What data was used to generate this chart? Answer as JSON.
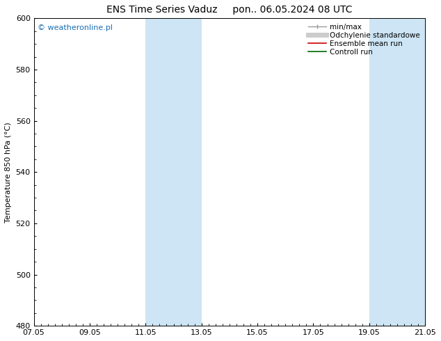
{
  "title": "ENS Time Series Vaduz     pon.. 06.05.2024 08 UTC",
  "ylabel": "Temperature 850 hPa (°C)",
  "ylim": [
    480,
    600
  ],
  "yticks": [
    480,
    500,
    520,
    540,
    560,
    580,
    600
  ],
  "xlim": [
    0,
    14
  ],
  "xtick_labels": [
    "07.05",
    "09.05",
    "11.05",
    "13.05",
    "15.05",
    "17.05",
    "19.05",
    "21.05"
  ],
  "xtick_positions": [
    0,
    2,
    4,
    6,
    8,
    10,
    12,
    14
  ],
  "shaded_bands": [
    {
      "x_start": 4.0,
      "x_end": 5.0
    },
    {
      "x_start": 5.0,
      "x_end": 6.0
    },
    {
      "x_start": 12.0,
      "x_end": 13.0
    },
    {
      "x_start": 13.0,
      "x_end": 14.0
    }
  ],
  "shade_color": "#cde5f5",
  "watermark_text": "© weatheronline.pl",
  "watermark_color": "#1a6eb5",
  "legend_entries": [
    {
      "label": "min/max",
      "color": "#999999",
      "lw": 1.0,
      "style": "line_with_caps"
    },
    {
      "label": "Odchylenie standardowe",
      "color": "#cccccc",
      "lw": 5,
      "style": "thick"
    },
    {
      "label": "Ensemble mean run",
      "color": "#cc0000",
      "lw": 1.2,
      "style": "line"
    },
    {
      "label": "Controll run",
      "color": "#006600",
      "lw": 1.2,
      "style": "line"
    }
  ],
  "bg_color": "#ffffff",
  "spine_color": "#000000",
  "font_size_title": 10,
  "font_size_axis": 8,
  "font_size_legend": 7.5,
  "font_size_watermark": 8
}
